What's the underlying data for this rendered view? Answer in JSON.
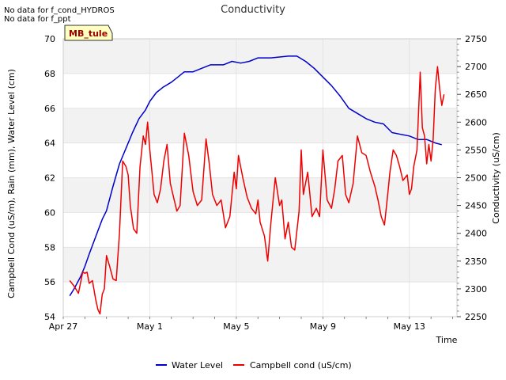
{
  "notices": [
    "No data for f_cond_HYDROS",
    "No data for f_ppt"
  ],
  "badge": "MB_tule",
  "colors": {
    "water": "#0000cc",
    "cond": "#ee0000",
    "band": "#f2f2f2",
    "grid": "#dddddd",
    "badge_bg": "#ffffc0",
    "badge_text": "#990000"
  },
  "chart_data": {
    "type": "line",
    "title": "Conductivity",
    "xlabel": "Time",
    "ylabel": "Campbell Cond (uS/m), Rain (mm), Water Level (cm)",
    "y2label": "Conductivity (uS/cm)",
    "xlim": [
      0,
      18.2
    ],
    "ylim": [
      54,
      70
    ],
    "y2lim": [
      2250,
      2750
    ],
    "x_ticks": [
      {
        "x": 0,
        "label": "Apr 27"
      },
      {
        "x": 4,
        "label": "May 1"
      },
      {
        "x": 8,
        "label": "May 5"
      },
      {
        "x": 12,
        "label": "May 9"
      },
      {
        "x": 16,
        "label": "May 13"
      }
    ],
    "y_ticks": [
      54,
      56,
      58,
      60,
      62,
      64,
      66,
      68,
      70
    ],
    "y2_ticks": [
      2250,
      2300,
      2350,
      2400,
      2450,
      2500,
      2550,
      2600,
      2650,
      2700,
      2750
    ],
    "series": [
      {
        "name": "Water Level",
        "axis": "left",
        "color": "#0000cc",
        "x": [
          0.3,
          0.5,
          0.8,
          1.0,
          1.2,
          1.5,
          1.8,
          2.0,
          2.3,
          2.6,
          2.9,
          3.2,
          3.5,
          3.8,
          4.0,
          4.3,
          4.6,
          5.0,
          5.3,
          5.6,
          6.0,
          6.4,
          6.8,
          7.0,
          7.4,
          7.8,
          8.2,
          8.6,
          9.0,
          9.3,
          9.6,
          10.0,
          10.4,
          10.8,
          11.2,
          11.6,
          12.0,
          12.4,
          12.8,
          13.2,
          13.6,
          14.0,
          14.4,
          14.8,
          15.2,
          15.6,
          16.0,
          16.4,
          16.8,
          17.2,
          17.5
        ],
        "y": [
          55.2,
          55.6,
          56.3,
          56.9,
          57.6,
          58.6,
          59.6,
          60.1,
          61.5,
          62.8,
          63.7,
          64.6,
          65.4,
          65.9,
          66.4,
          66.9,
          67.2,
          67.5,
          67.8,
          68.1,
          68.1,
          68.3,
          68.5,
          68.5,
          68.5,
          68.7,
          68.6,
          68.7,
          68.9,
          68.9,
          68.9,
          68.95,
          69.0,
          69.0,
          68.7,
          68.3,
          67.8,
          67.3,
          66.7,
          66.0,
          65.7,
          65.4,
          65.2,
          65.1,
          64.6,
          64.5,
          64.4,
          64.2,
          64.2,
          64.0,
          63.9
        ]
      },
      {
        "name": "Campbell cond (uS/cm)",
        "axis": "right",
        "color": "#ee0000",
        "x": [
          0.3,
          0.5,
          0.7,
          0.9,
          1.0,
          1.1,
          1.2,
          1.35,
          1.5,
          1.6,
          1.7,
          1.8,
          1.9,
          2.0,
          2.15,
          2.3,
          2.45,
          2.6,
          2.75,
          2.9,
          3.0,
          3.1,
          3.25,
          3.4,
          3.55,
          3.7,
          3.8,
          3.9,
          4.0,
          4.1,
          4.2,
          4.35,
          4.5,
          4.65,
          4.8,
          4.95,
          5.1,
          5.25,
          5.4,
          5.6,
          5.8,
          6.0,
          6.2,
          6.4,
          6.6,
          6.75,
          6.9,
          7.1,
          7.3,
          7.5,
          7.7,
          7.9,
          8.0,
          8.1,
          8.3,
          8.5,
          8.7,
          8.9,
          9.0,
          9.1,
          9.3,
          9.45,
          9.6,
          9.8,
          10.0,
          10.1,
          10.25,
          10.4,
          10.55,
          10.7,
          10.9,
          11.0,
          11.1,
          11.3,
          11.5,
          11.7,
          11.85,
          12.0,
          12.2,
          12.4,
          12.55,
          12.7,
          12.9,
          13.05,
          13.2,
          13.4,
          13.6,
          13.8,
          14.0,
          14.2,
          14.4,
          14.55,
          14.7,
          14.85,
          15.0,
          15.1,
          15.25,
          15.4,
          15.55,
          15.7,
          15.9,
          16.0,
          16.1,
          16.2,
          16.35,
          16.5,
          16.6,
          16.7,
          16.8,
          16.9,
          17.0,
          17.1,
          17.2,
          17.3,
          17.4,
          17.5,
          17.6
        ],
        "y": [
          2315,
          2305,
          2292,
          2330,
          2328,
          2330,
          2310,
          2315,
          2281,
          2263,
          2255,
          2290,
          2300,
          2360,
          2340,
          2318,
          2315,
          2400,
          2530,
          2520,
          2505,
          2450,
          2408,
          2400,
          2520,
          2575,
          2560,
          2600,
          2550,
          2510,
          2470,
          2455,
          2480,
          2530,
          2560,
          2490,
          2465,
          2440,
          2450,
          2580,
          2540,
          2475,
          2450,
          2460,
          2570,
          2525,
          2470,
          2450,
          2460,
          2410,
          2430,
          2510,
          2480,
          2540,
          2500,
          2465,
          2445,
          2435,
          2460,
          2420,
          2395,
          2350,
          2420,
          2500,
          2450,
          2460,
          2390,
          2420,
          2375,
          2370,
          2440,
          2550,
          2470,
          2510,
          2430,
          2445,
          2430,
          2550,
          2460,
          2445,
          2480,
          2530,
          2540,
          2470,
          2455,
          2490,
          2575,
          2545,
          2540,
          2510,
          2485,
          2460,
          2430,
          2415,
          2470,
          2510,
          2550,
          2540,
          2520,
          2495,
          2505,
          2470,
          2480,
          2520,
          2550,
          2690,
          2590,
          2575,
          2525,
          2560,
          2530,
          2570,
          2660,
          2700,
          2660,
          2630,
          2650
        ]
      }
    ],
    "legend": [
      "Water Level",
      "Campbell cond (uS/cm)"
    ],
    "legend_position": "bottom-center",
    "grid": true
  }
}
